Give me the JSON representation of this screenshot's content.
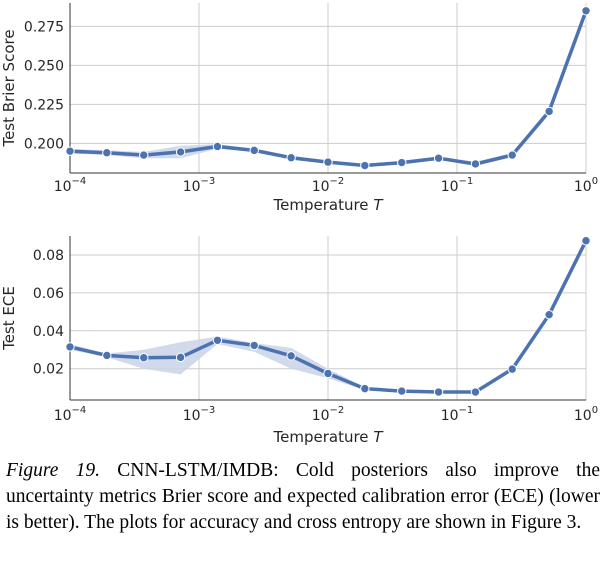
{
  "chart_data": [
    {
      "type": "line",
      "xscale": "log",
      "xlim": [
        0.0001,
        1
      ],
      "ylim": [
        0.181,
        0.29
      ],
      "xlabel": "Temperature",
      "xlabel_var": "T",
      "ylabel": "Test Brier Score",
      "xticks": [
        {
          "value": 0.0001,
          "base": "10",
          "exp": "−4"
        },
        {
          "value": 0.001,
          "base": "10",
          "exp": "−3"
        },
        {
          "value": 0.01,
          "base": "10",
          "exp": "−2"
        },
        {
          "value": 0.1,
          "base": "10",
          "exp": "−1"
        },
        {
          "value": 1,
          "base": "10",
          "exp": "0"
        }
      ],
      "yticks": [
        {
          "value": 0.2,
          "label": "0.200"
        },
        {
          "value": 0.225,
          "label": "0.225"
        },
        {
          "value": 0.25,
          "label": "0.250"
        },
        {
          "value": 0.275,
          "label": "0.275"
        }
      ],
      "color": "#4c72b0",
      "band_color": "#c9d3e8",
      "series": [
        {
          "name": "Brier score",
          "x": [
            0.0001,
            0.000193,
            0.000373,
            0.00072,
            0.00139,
            0.00268,
            0.00518,
            0.01,
            0.0193,
            0.0373,
            0.072,
            0.139,
            0.268,
            0.518,
            1
          ],
          "y": [
            0.195,
            0.194,
            0.1925,
            0.1945,
            0.198,
            0.1955,
            0.1908,
            0.188,
            0.1858,
            0.1877,
            0.1905,
            0.1868,
            0.1925,
            0.2205,
            0.285
          ],
          "band_low": [
            0.1935,
            0.1925,
            0.1905,
            0.1905,
            0.1965,
            0.1945,
            0.1895,
            0.187,
            0.185,
            0.1865,
            0.1895,
            0.1855,
            0.191,
            0.2185,
            0.284
          ],
          "band_high": [
            0.1965,
            0.1955,
            0.1945,
            0.1985,
            0.1995,
            0.1965,
            0.192,
            0.189,
            0.1866,
            0.1889,
            0.1915,
            0.1881,
            0.194,
            0.2225,
            0.286
          ]
        }
      ]
    },
    {
      "type": "line",
      "xscale": "log",
      "xlim": [
        0.0001,
        1
      ],
      "ylim": [
        0.0035,
        0.09
      ],
      "xlabel": "Temperature",
      "xlabel_var": "T",
      "ylabel": "Test ECE",
      "xticks": [
        {
          "value": 0.0001,
          "base": "10",
          "exp": "−4"
        },
        {
          "value": 0.001,
          "base": "10",
          "exp": "−3"
        },
        {
          "value": 0.01,
          "base": "10",
          "exp": "−2"
        },
        {
          "value": 0.1,
          "base": "10",
          "exp": "−1"
        },
        {
          "value": 1,
          "base": "10",
          "exp": "0"
        }
      ],
      "yticks": [
        {
          "value": 0.02,
          "label": "0.02"
        },
        {
          "value": 0.04,
          "label": "0.04"
        },
        {
          "value": 0.06,
          "label": "0.06"
        },
        {
          "value": 0.08,
          "label": "0.08"
        }
      ],
      "color": "#4c72b0",
      "band_color": "#c9d3e8",
      "series": [
        {
          "name": "ECE",
          "x": [
            0.0001,
            0.000193,
            0.000373,
            0.00072,
            0.00139,
            0.00268,
            0.00518,
            0.01,
            0.0193,
            0.0373,
            0.072,
            0.139,
            0.268,
            0.518,
            1
          ],
          "y": [
            0.0315,
            0.027,
            0.0258,
            0.026,
            0.035,
            0.0323,
            0.0268,
            0.0175,
            0.0095,
            0.0082,
            0.0077,
            0.0077,
            0.0198,
            0.0485,
            0.0875
          ],
          "band_low": [
            0.03,
            0.026,
            0.02,
            0.017,
            0.033,
            0.029,
            0.02,
            0.015,
            0.0088,
            0.0076,
            0.0071,
            0.0071,
            0.0188,
            0.0475,
            0.0865
          ],
          "band_high": [
            0.033,
            0.028,
            0.03,
            0.034,
            0.037,
            0.0335,
            0.031,
            0.02,
            0.0102,
            0.0088,
            0.0083,
            0.0083,
            0.0208,
            0.0495,
            0.0885
          ]
        }
      ]
    }
  ],
  "caption": {
    "figure_label": "Figure 19.",
    "text": " CNN-LSTM/IMDB: Cold posteriors also improve the uncertainty metrics Brier score and expected calibration error (ECE) (lower is better). The plots for accuracy and cross entropy are shown in Figure 3."
  }
}
